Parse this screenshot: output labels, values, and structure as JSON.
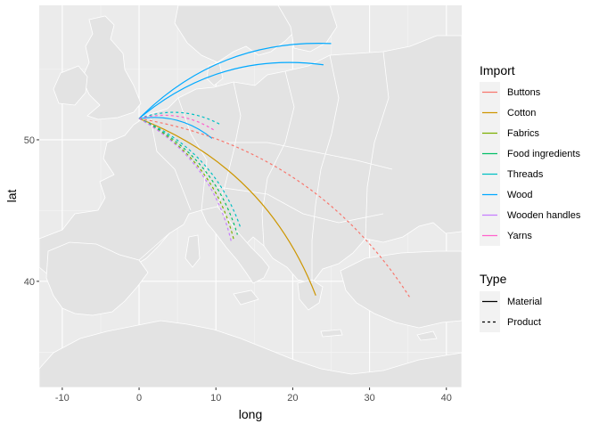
{
  "chart_data": {
    "type": "line",
    "title": "",
    "xlabel": "long",
    "ylabel": "lat",
    "xlim": [
      -13,
      42
    ],
    "ylim": [
      32.5,
      59.5
    ],
    "x_ticks": [
      -10,
      0,
      10,
      20,
      30,
      40
    ],
    "y_ticks": [
      40,
      50
    ],
    "x_tick_labels": [
      "-10",
      "0",
      "10",
      "20",
      "30",
      "40"
    ],
    "y_tick_labels": [
      "40",
      "50"
    ],
    "grid": true,
    "background_map": "Europe country outlines (grey fill, white borders)",
    "legend_placement": "right",
    "origin": {
      "long": 0,
      "lat": 51.5
    },
    "legends": [
      {
        "title": "Import",
        "entries": [
          "Buttons",
          "Cotton",
          "Fabrics",
          "Food ingredients",
          "Threads",
          "Wood",
          "Wooden handles",
          "Yarns"
        ],
        "colors": [
          "#F8766D",
          "#CD9600",
          "#7CAE00",
          "#00BE67",
          "#00BFC4",
          "#00A9FF",
          "#C77CFF",
          "#FF61CC"
        ]
      },
      {
        "title": "Type",
        "entries": [
          "Material",
          "Product"
        ],
        "line_styles": [
          "solid",
          "dashed"
        ]
      }
    ],
    "series": [
      {
        "import": "Wood",
        "type": "Material",
        "color": "#00A9FF",
        "dash": "solid",
        "from": [
          0,
          51.5
        ],
        "to": [
          25,
          56.8
        ],
        "curvature": 0.22
      },
      {
        "import": "Wood",
        "type": "Material",
        "color": "#00A9FF",
        "dash": "solid",
        "from": [
          0,
          51.5
        ],
        "to": [
          24,
          55.3
        ],
        "curvature": 0.22
      },
      {
        "import": "Wood",
        "type": "Material",
        "color": "#00A9FF",
        "dash": "solid",
        "from": [
          0,
          51.5
        ],
        "to": [
          9.5,
          50.1
        ],
        "curvature": 0.22
      },
      {
        "import": "Threads",
        "type": "Product",
        "color": "#00BFC4",
        "dash": "dashed",
        "from": [
          0,
          51.5
        ],
        "to": [
          10.5,
          51.1
        ],
        "curvature": 0.22
      },
      {
        "import": "Yarns",
        "type": "Product",
        "color": "#FF61CC",
        "dash": "dashed",
        "from": [
          0,
          51.5
        ],
        "to": [
          10,
          50.6
        ],
        "curvature": 0.22
      },
      {
        "import": "Buttons",
        "type": "Product",
        "color": "#F8766D",
        "dash": "dashed",
        "from": [
          0,
          51.5
        ],
        "to": [
          35.2,
          38.9
        ],
        "curvature": 0.22
      },
      {
        "import": "Cotton",
        "type": "Material",
        "color": "#CD9600",
        "dash": "solid",
        "from": [
          0,
          51.5
        ],
        "to": [
          23,
          39
        ],
        "curvature": 0.22
      },
      {
        "import": "Threads",
        "type": "Product",
        "color": "#00BFC4",
        "dash": "dashed",
        "from": [
          0,
          51.5
        ],
        "to": [
          13.2,
          43.8
        ],
        "curvature": 0.22
      },
      {
        "import": "Food ingredients",
        "type": "Product",
        "color": "#00BE67",
        "dash": "dashed",
        "from": [
          0,
          51.5
        ],
        "to": [
          12.8,
          43.3
        ],
        "curvature": 0.22
      },
      {
        "import": "Fabrics",
        "type": "Product",
        "color": "#7CAE00",
        "dash": "dashed",
        "from": [
          0,
          51.5
        ],
        "to": [
          12.3,
          43
        ],
        "curvature": 0.22
      },
      {
        "import": "Wooden handles",
        "type": "Product",
        "color": "#C77CFF",
        "dash": "dashed",
        "from": [
          0,
          51.5
        ],
        "to": [
          12,
          42.8
        ],
        "curvature": 0.22
      }
    ]
  }
}
